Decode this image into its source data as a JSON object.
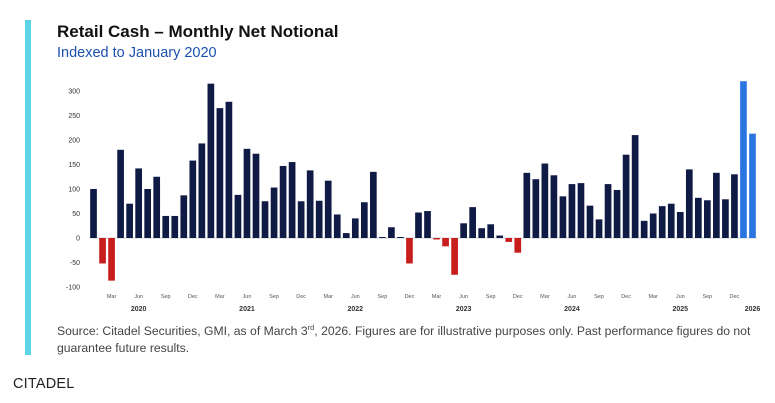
{
  "header": {
    "title": "Retail Cash – Monthly Net Notional",
    "subtitle": "Indexed to January 2020"
  },
  "source": {
    "prefix": "Source: Citadel Securities, GMI, as of March 3",
    "sup": "rd",
    "suffix": ", 2026. Figures are for illustrative purposes only. Past performance figures do not guarantee future results."
  },
  "brand": "CITADEL",
  "colors": {
    "bar_default": "#0f1a45",
    "bar_negative": "#c81d1d",
    "bar_highlight": "#2a75e0",
    "accent": "#5fd3e6"
  },
  "chart_data": {
    "type": "bar",
    "title": "Retail Cash – Monthly Net Notional",
    "subtitle": "Indexed to January 2020",
    "ylim": [
      -100,
      300
    ],
    "yticks": [
      -100,
      -50,
      0,
      50,
      100,
      150,
      200,
      250,
      300
    ],
    "x_tick_labels": [
      {
        "label": "Mar",
        "index": 2
      },
      {
        "label": "Jun",
        "index": 5
      },
      {
        "label": "Sep",
        "index": 8
      },
      {
        "label": "Dec",
        "index": 11
      },
      {
        "label": "Mar",
        "index": 14
      },
      {
        "label": "Jun",
        "index": 17
      },
      {
        "label": "Sep",
        "index": 20
      },
      {
        "label": "Dec",
        "index": 23
      },
      {
        "label": "Mar",
        "index": 26
      },
      {
        "label": "Jun",
        "index": 29
      },
      {
        "label": "Sep",
        "index": 32
      },
      {
        "label": "Dec",
        "index": 35
      },
      {
        "label": "Mar",
        "index": 38
      },
      {
        "label": "Jun",
        "index": 41
      },
      {
        "label": "Sep",
        "index": 44
      },
      {
        "label": "Dec",
        "index": 47
      },
      {
        "label": "Mar",
        "index": 50
      },
      {
        "label": "Jun",
        "index": 53
      },
      {
        "label": "Sep",
        "index": 56
      },
      {
        "label": "Dec",
        "index": 59
      },
      {
        "label": "Mar",
        "index": 62
      },
      {
        "label": "Jun",
        "index": 65
      },
      {
        "label": "Sep",
        "index": 68
      },
      {
        "label": "Dec",
        "index": 71
      }
    ],
    "year_labels": [
      {
        "label": "2020",
        "index": 5
      },
      {
        "label": "2021",
        "index": 17
      },
      {
        "label": "2022",
        "index": 29
      },
      {
        "label": "2023",
        "index": 41
      },
      {
        "label": "2024",
        "index": 53
      },
      {
        "label": "2025",
        "index": 65
      },
      {
        "label": "2026",
        "index": 73
      }
    ],
    "values": [
      100,
      -52,
      -87,
      180,
      70,
      142,
      100,
      125,
      45,
      45,
      87,
      158,
      193,
      315,
      265,
      278,
      88,
      182,
      172,
      75,
      103,
      147,
      155,
      75,
      138,
      76,
      117,
      48,
      10,
      40,
      73,
      135,
      2,
      22,
      2,
      -52,
      52,
      55,
      -3,
      -17,
      -75,
      30,
      63,
      20,
      28,
      5,
      -8,
      -30,
      133,
      120,
      152,
      128,
      85,
      110,
      112,
      66,
      38,
      110,
      98,
      170,
      210,
      35,
      50,
      65,
      70,
      53,
      140,
      82,
      77,
      133,
      79,
      130,
      320,
      213
    ],
    "highlight_indices": [
      72,
      73
    ]
  }
}
